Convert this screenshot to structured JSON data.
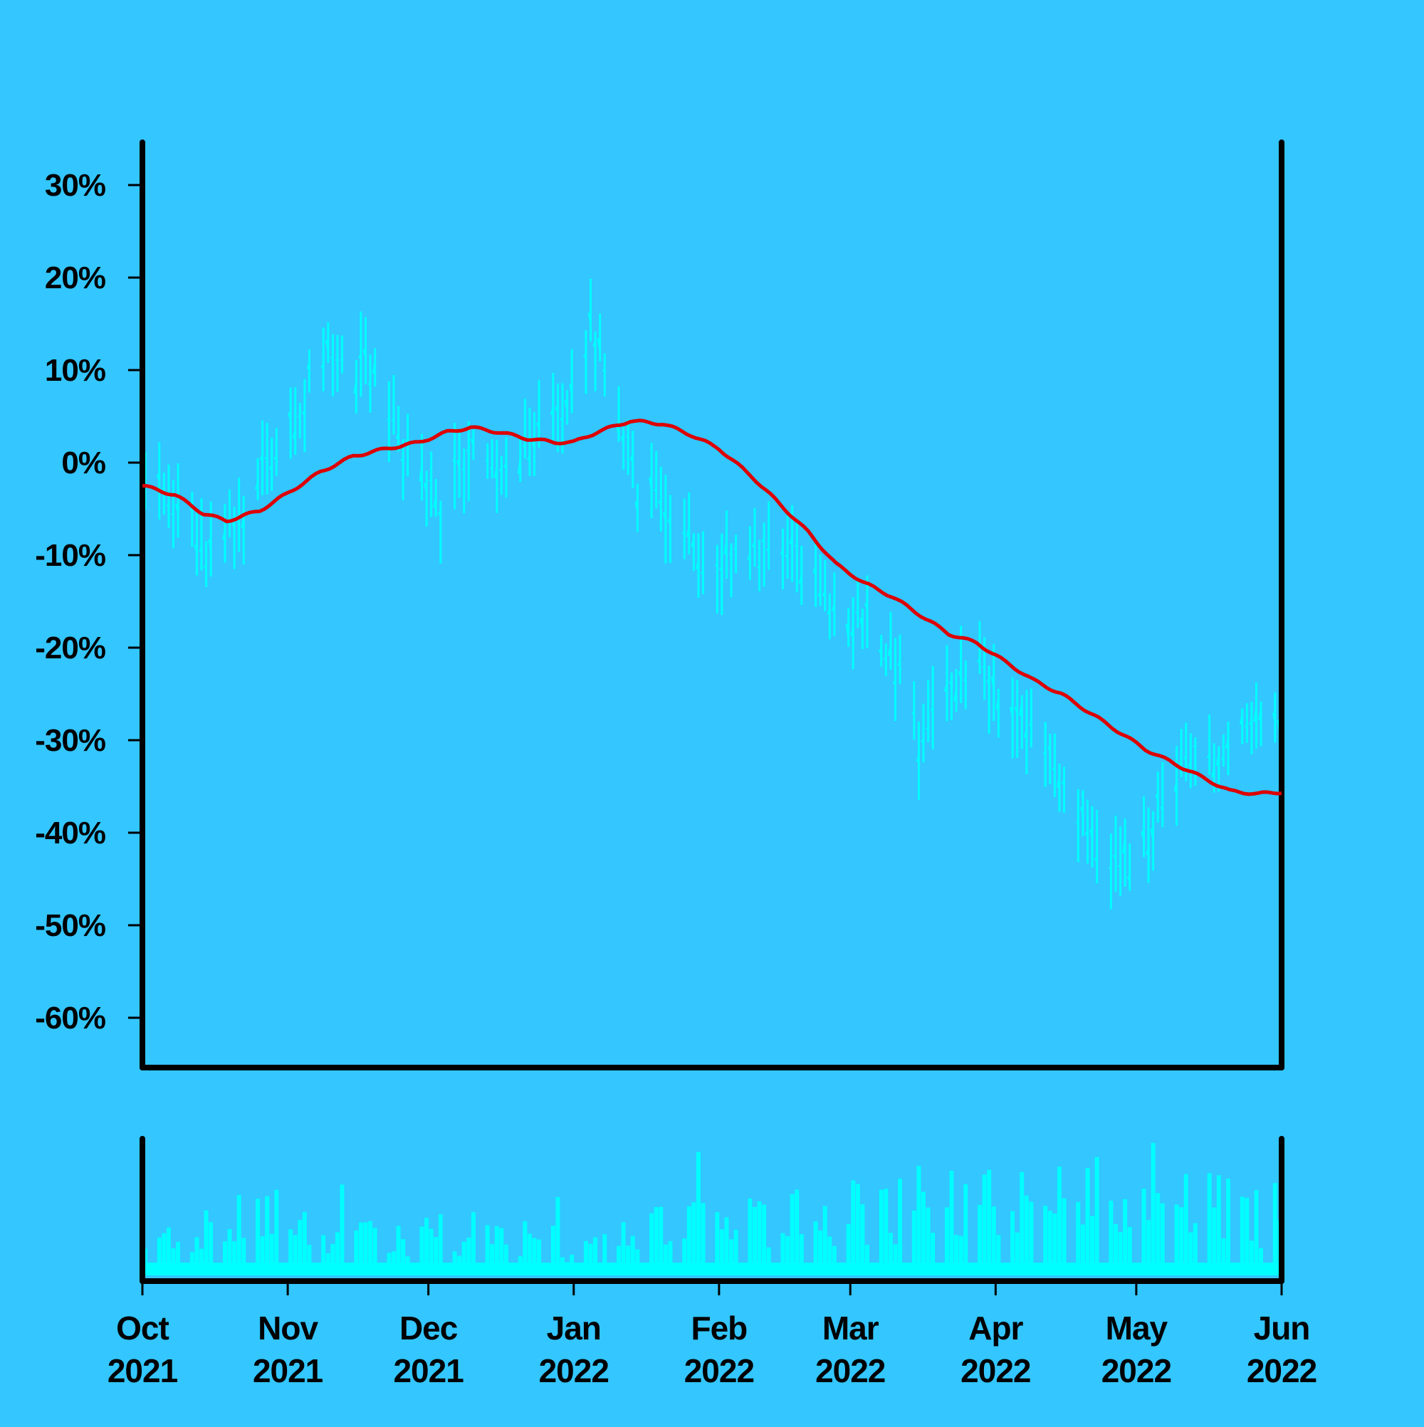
{
  "colors": {
    "background": "#33c6ff",
    "price_bars": "#00ffff",
    "moving_average": "#dd0000",
    "volume_bars": "#00ffff",
    "axes": "#000000"
  },
  "chart_data": [
    {
      "type": "ohlc",
      "title": "",
      "xlabel": "",
      "ylabel": "",
      "y_axis": {
        "range": [
          -65,
          35
        ],
        "ticks": [
          30,
          20,
          10,
          0,
          -10,
          -20,
          -30,
          -40,
          -50,
          -60
        ],
        "tick_labels": [
          "30%",
          "20%",
          "10%",
          "0%",
          "-10%",
          "-20%",
          "-30%",
          "-40%",
          "-50%",
          "-60%"
        ]
      },
      "x_axis": {
        "range": [
          "2021-10-01",
          "2022-06-01"
        ],
        "ticks": [
          "2021-10-01",
          "2021-11-01",
          "2021-12-01",
          "2022-01-01",
          "2022-02-01",
          "2022-03-01",
          "2022-04-01",
          "2022-05-01",
          "2022-06-01"
        ],
        "tick_labels": [
          [
            "Oct",
            "2021"
          ],
          [
            "Nov",
            "2021"
          ],
          [
            "Dec",
            "2021"
          ],
          [
            "Jan",
            "2022"
          ],
          [
            "Feb",
            "2022"
          ],
          [
            "Mar",
            "2022"
          ],
          [
            "Apr",
            "2022"
          ],
          [
            "May",
            "2022"
          ],
          [
            "Jun",
            "2022"
          ]
        ]
      },
      "grid": false,
      "price_series_approx": [
        {
          "date": "2021-10-01",
          "close": -2
        },
        {
          "date": "2021-10-08",
          "close": -5
        },
        {
          "date": "2021-10-14",
          "close": -9
        },
        {
          "date": "2021-10-20",
          "close": -8
        },
        {
          "date": "2021-10-26",
          "close": -1
        },
        {
          "date": "2021-11-01",
          "close": 4
        },
        {
          "date": "2021-11-05",
          "close": 8
        },
        {
          "date": "2021-11-09",
          "close": 12
        },
        {
          "date": "2021-11-13",
          "close": 9
        },
        {
          "date": "2021-11-17",
          "close": 11
        },
        {
          "date": "2021-11-22",
          "close": 5
        },
        {
          "date": "2021-11-27",
          "close": 0
        },
        {
          "date": "2021-12-03",
          "close": -4
        },
        {
          "date": "2021-12-08",
          "close": 1
        },
        {
          "date": "2021-12-14",
          "close": 1
        },
        {
          "date": "2021-12-20",
          "close": 0
        },
        {
          "date": "2021-12-26",
          "close": 5
        },
        {
          "date": "2021-12-30",
          "close": 7
        },
        {
          "date": "2022-01-04",
          "close": 14
        },
        {
          "date": "2022-01-09",
          "close": 8
        },
        {
          "date": "2022-01-14",
          "close": -3
        },
        {
          "date": "2022-01-20",
          "close": -4
        },
        {
          "date": "2022-01-26",
          "close": -10
        },
        {
          "date": "2022-02-01",
          "close": -11
        },
        {
          "date": "2022-02-07",
          "close": -10
        },
        {
          "date": "2022-02-13",
          "close": -11
        },
        {
          "date": "2022-02-19",
          "close": -10
        },
        {
          "date": "2022-02-25",
          "close": -17
        },
        {
          "date": "2022-03-03",
          "close": -16
        },
        {
          "date": "2022-03-09",
          "close": -20
        },
        {
          "date": "2022-03-15",
          "close": -30
        },
        {
          "date": "2022-03-21",
          "close": -26
        },
        {
          "date": "2022-03-27",
          "close": -20
        },
        {
          "date": "2022-04-02",
          "close": -28
        },
        {
          "date": "2022-04-08",
          "close": -27
        },
        {
          "date": "2022-04-14",
          "close": -34
        },
        {
          "date": "2022-04-20",
          "close": -41
        },
        {
          "date": "2022-04-26",
          "close": -43
        },
        {
          "date": "2022-05-02",
          "close": -42
        },
        {
          "date": "2022-05-08",
          "close": -34
        },
        {
          "date": "2022-05-14",
          "close": -33
        },
        {
          "date": "2022-05-20",
          "close": -31
        },
        {
          "date": "2022-05-25",
          "close": -27
        },
        {
          "date": "2022-06-01",
          "close": -30
        }
      ],
      "moving_average_approx": [
        {
          "date": "2021-10-01",
          "value": -2.5
        },
        {
          "date": "2021-10-08",
          "value": -3.5
        },
        {
          "date": "2021-10-14",
          "value": -5.5
        },
        {
          "date": "2021-10-19",
          "value": -6.3
        },
        {
          "date": "2021-10-26",
          "value": -5.2
        },
        {
          "date": "2021-11-01",
          "value": -3.3
        },
        {
          "date": "2021-11-08",
          "value": -1
        },
        {
          "date": "2021-11-15",
          "value": 0.7
        },
        {
          "date": "2021-11-22",
          "value": 1.5
        },
        {
          "date": "2021-11-29",
          "value": 2.2
        },
        {
          "date": "2021-12-05",
          "value": 3.3
        },
        {
          "date": "2021-12-10",
          "value": 3.8
        },
        {
          "date": "2021-12-16",
          "value": 3.3
        },
        {
          "date": "2021-12-22",
          "value": 2.6
        },
        {
          "date": "2021-12-28",
          "value": 2.2
        },
        {
          "date": "2022-01-01",
          "value": 2.2
        },
        {
          "date": "2022-01-06",
          "value": 3.3
        },
        {
          "date": "2022-01-13",
          "value": 4.5
        },
        {
          "date": "2022-01-20",
          "value": 4.2
        },
        {
          "date": "2022-01-26",
          "value": 3
        },
        {
          "date": "2022-02-01",
          "value": 1.5
        },
        {
          "date": "2022-02-08",
          "value": -1.5
        },
        {
          "date": "2022-02-14",
          "value": -4.5
        },
        {
          "date": "2022-02-20",
          "value": -7.5
        },
        {
          "date": "2022-02-26",
          "value": -11
        },
        {
          "date": "2022-03-04",
          "value": -13
        },
        {
          "date": "2022-03-10",
          "value": -14.5
        },
        {
          "date": "2022-03-16",
          "value": -16.5
        },
        {
          "date": "2022-03-22",
          "value": -18.5
        },
        {
          "date": "2022-03-28",
          "value": -19.5
        },
        {
          "date": "2022-04-03",
          "value": -21.5
        },
        {
          "date": "2022-04-09",
          "value": -23.5
        },
        {
          "date": "2022-04-15",
          "value": -25
        },
        {
          "date": "2022-04-21",
          "value": -27
        },
        {
          "date": "2022-04-27",
          "value": -29
        },
        {
          "date": "2022-05-03",
          "value": -31
        },
        {
          "date": "2022-05-09",
          "value": -32.5
        },
        {
          "date": "2022-05-15",
          "value": -34
        },
        {
          "date": "2022-05-21",
          "value": -35.5
        },
        {
          "date": "2022-05-27",
          "value": -35.8
        },
        {
          "date": "2022-06-01",
          "value": -35.6
        }
      ],
      "volume_series_approx": [
        {
          "date": "2021-10-01",
          "volume": 0.2
        },
        {
          "date": "2021-10-15",
          "volume": 0.45
        },
        {
          "date": "2021-10-25",
          "volume": 0.5
        },
        {
          "date": "2021-11-08",
          "volume": 0.35
        },
        {
          "date": "2021-11-25",
          "volume": 0.3
        },
        {
          "date": "2021-12-10",
          "volume": 0.4
        },
        {
          "date": "2021-12-25",
          "volume": 0.3
        },
        {
          "date": "2022-01-05",
          "volume": 0.25
        },
        {
          "date": "2022-01-20",
          "volume": 0.45
        },
        {
          "date": "2022-02-05",
          "volume": 0.45
        },
        {
          "date": "2022-02-20",
          "volume": 0.55
        },
        {
          "date": "2022-03-05",
          "volume": 0.6
        },
        {
          "date": "2022-03-20",
          "volume": 0.65
        },
        {
          "date": "2022-04-05",
          "volume": 0.6
        },
        {
          "date": "2022-04-20",
          "volume": 0.7
        },
        {
          "date": "2022-05-01",
          "volume": 0.75
        },
        {
          "date": "2022-05-15",
          "volume": 0.6
        },
        {
          "date": "2022-06-01",
          "volume": 0.55
        }
      ]
    }
  ]
}
